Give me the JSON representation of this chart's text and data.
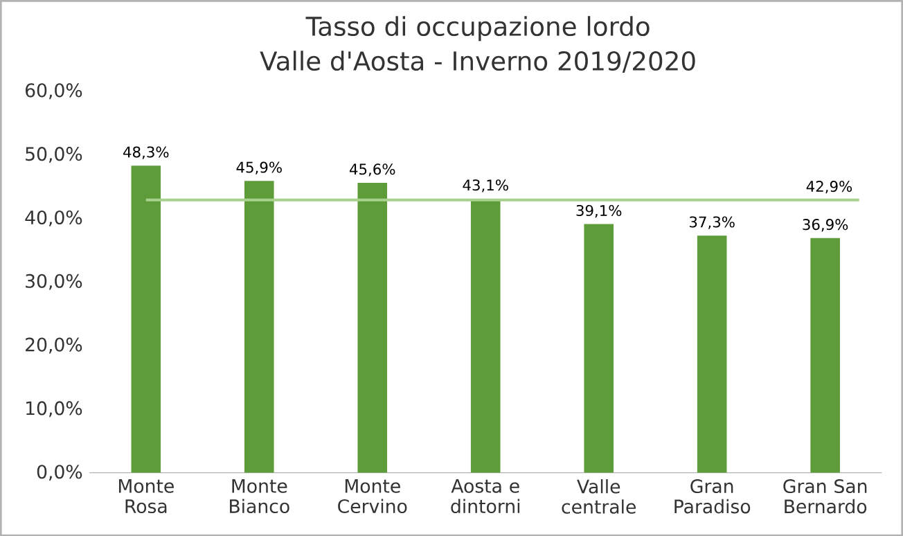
{
  "chart_data": {
    "type": "bar",
    "title": "Tasso di occupazione lordo",
    "subtitle": "Valle d'Aosta - Inverno 2019/2020",
    "categories": [
      "Monte Rosa",
      "Monte Bianco",
      "Monte Cervino",
      "Aosta e dintorni",
      "Valle centrale",
      "Gran Paradiso",
      "Gran San Bernardo"
    ],
    "values": [
      48.3,
      45.9,
      45.6,
      43.1,
      39.1,
      37.3,
      36.9
    ],
    "value_labels": [
      "48,3%",
      "45,9%",
      "45,6%",
      "43,1%",
      "39,1%",
      "37,3%",
      "36,9%"
    ],
    "color": "#5e9c3a",
    "ylim": [
      0,
      60
    ],
    "yticks": [
      {
        "value": 0,
        "label": "0,0%"
      },
      {
        "value": 10,
        "label": "10,0%"
      },
      {
        "value": 20,
        "label": "20,0%"
      },
      {
        "value": 30,
        "label": "30,0%"
      },
      {
        "value": 40,
        "label": "40,0%"
      },
      {
        "value": 50,
        "label": "50,0%"
      },
      {
        "value": 60,
        "label": "60,0%"
      }
    ],
    "ref_lines": [
      {
        "axis": "y",
        "value": 42.9,
        "label": "42,9%",
        "color": "#a9d18e"
      }
    ]
  }
}
